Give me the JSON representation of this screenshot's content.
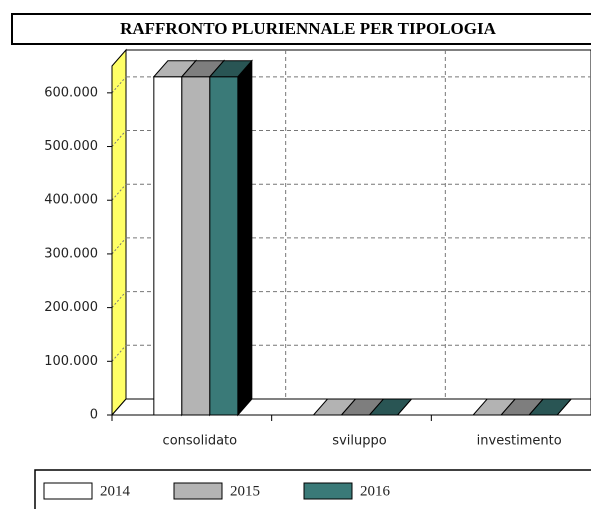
{
  "chart_data": {
    "type": "bar3d",
    "title": "RAFFRONTO PLURIENNALE PER TIPOLOGIA",
    "categories": [
      "consolidato",
      "sviluppo",
      "investimento"
    ],
    "series": [
      {
        "name": "2014",
        "color": "#ffffff",
        "values": [
          630000,
          0,
          0
        ]
      },
      {
        "name": "2015",
        "color": "#b4b4b4",
        "values": [
          630000,
          0,
          0
        ]
      },
      {
        "name": "2016",
        "color": "#3a7a78",
        "values": [
          630000,
          0,
          0
        ]
      }
    ],
    "ylim": [
      0,
      650000
    ],
    "yticks": [
      0,
      {
        "value": 100000,
        "label": "100.000"
      },
      {
        "value": 200000,
        "label": "200.000"
      },
      {
        "value": 300000,
        "label": "300.000"
      },
      {
        "value": 400000,
        "label": "400.000"
      },
      {
        "value": 500000,
        "label": "500.000"
      },
      {
        "value": 600000,
        "label": "600.000"
      }
    ],
    "grid": true,
    "legend": "bottom"
  }
}
